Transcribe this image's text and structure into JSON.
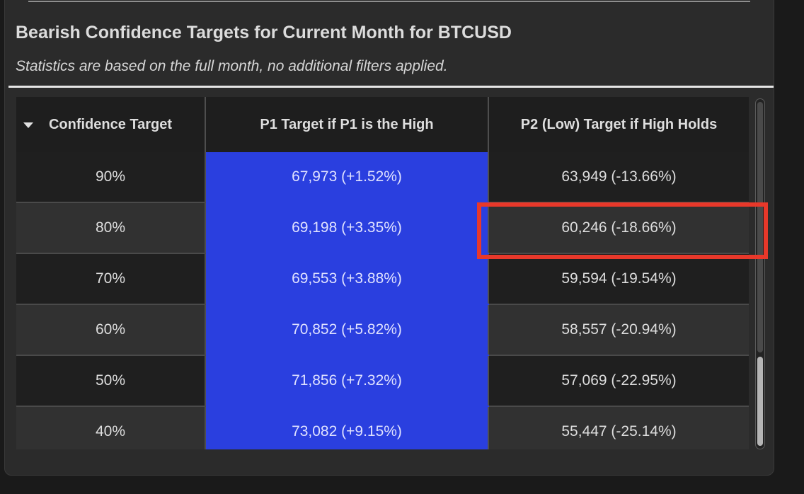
{
  "panel": {
    "title": "Bearish Confidence Targets for Current Month for BTCUSD",
    "subtitle": "Statistics are based on the full month, no additional filters applied."
  },
  "table": {
    "headers": {
      "confidence": "Confidence Target",
      "p1": "P1 Target if P1 is the High",
      "p2": "P2 (Low) Target if High Holds"
    },
    "sort_icon": "sort-descending-icon",
    "rows": [
      {
        "confidence": "90%",
        "p1": "67,973 (+1.52%)",
        "p2": "63,949 (-13.66%)"
      },
      {
        "confidence": "80%",
        "p1": "69,198 (+3.35%)",
        "p2": "60,246 (-18.66%)"
      },
      {
        "confidence": "70%",
        "p1": "69,553 (+3.88%)",
        "p2": "59,594 (-19.54%)"
      },
      {
        "confidence": "60%",
        "p1": "70,852 (+5.82%)",
        "p2": "58,557 (-20.94%)"
      },
      {
        "confidence": "50%",
        "p1": "71,856 (+7.32%)",
        "p2": "57,069 (-22.95%)"
      },
      {
        "confidence": "40%",
        "p1": "73,082 (+9.15%)",
        "p2": "55,447 (-25.14%)"
      }
    ]
  },
  "colors": {
    "highlight_column": "#2a3fdf",
    "annotation_box": "#e8382a"
  }
}
